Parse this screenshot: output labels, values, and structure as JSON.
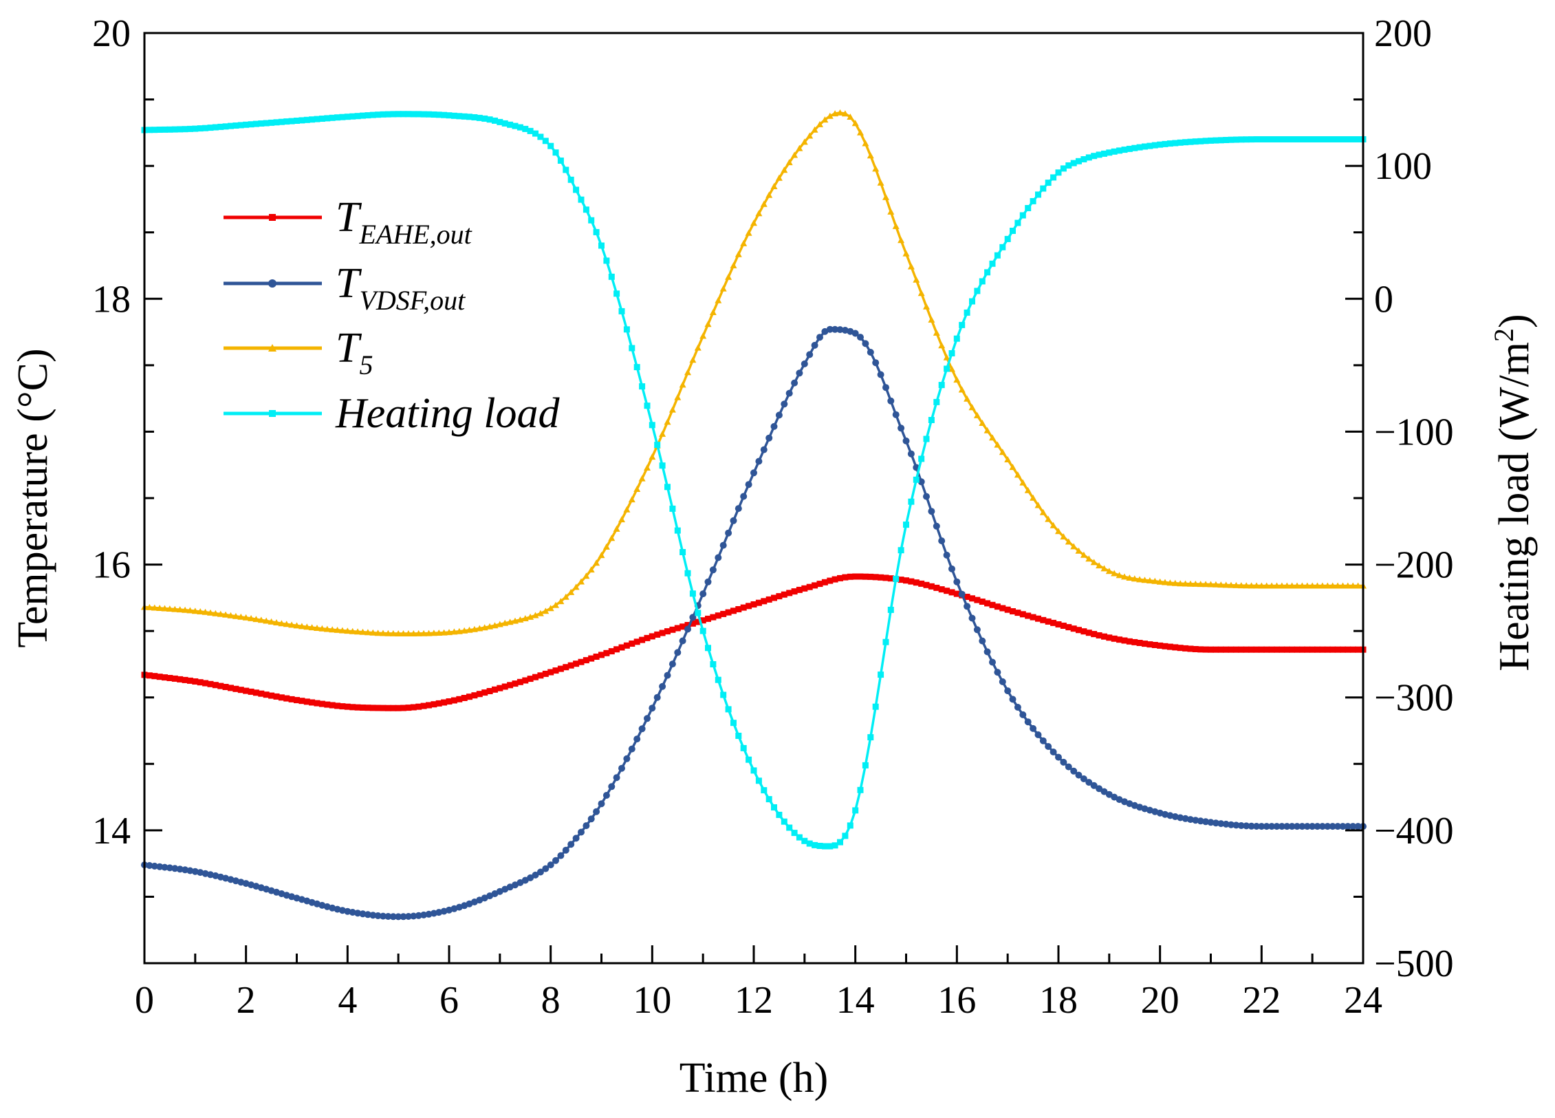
{
  "chart_data": {
    "type": "line",
    "title": "",
    "xlabel": "Time (h)",
    "ylabel": "Temperature (°C)",
    "y2label_main": "Heating load (W/m",
    "y2label_sup": "2",
    "y2label_tail": ")",
    "xlim": [
      0,
      24
    ],
    "ylim": [
      13,
      20
    ],
    "y2lim": [
      -500,
      200
    ],
    "xticks": [
      "0",
      "2",
      "4",
      "6",
      "8",
      "10",
      "12",
      "14",
      "16",
      "18",
      "20",
      "22",
      "24"
    ],
    "yticks": [
      "14",
      "16",
      "18",
      "20"
    ],
    "y2ticks": [
      "−500",
      "−400",
      "−300",
      "−200",
      "−100",
      "0",
      "100",
      "200"
    ],
    "legend_position": "upper-left",
    "series": [
      {
        "name": "T_EAHE,out",
        "label_main": "T",
        "label_sub": "EAHE,out",
        "axis": "left",
        "color": "#f00000",
        "marker": "square",
        "x": [
          0,
          1,
          2,
          3,
          4,
          5,
          6,
          7,
          8,
          9,
          10,
          11,
          12,
          13,
          14,
          15,
          16,
          17,
          18,
          19,
          20,
          21,
          22,
          23,
          24
        ],
        "values": [
          15.17,
          15.12,
          15.05,
          14.98,
          14.93,
          14.92,
          14.97,
          15.07,
          15.19,
          15.32,
          15.46,
          15.58,
          15.7,
          15.82,
          15.91,
          15.88,
          15.78,
          15.66,
          15.55,
          15.45,
          15.39,
          15.36,
          15.36,
          15.36,
          15.36
        ]
      },
      {
        "name": "T_VDSF,out",
        "label_main": "T",
        "label_sub": "VDSF,out",
        "axis": "left",
        "color": "#2f5597",
        "marker": "circle",
        "x": [
          0,
          1,
          2,
          3,
          4,
          5,
          6,
          7,
          8,
          8.5,
          9,
          10,
          11,
          12,
          13,
          13.5,
          14,
          15,
          16,
          17,
          18,
          19,
          20,
          21,
          22,
          23,
          24
        ],
        "values": [
          13.74,
          13.69,
          13.6,
          13.49,
          13.39,
          13.35,
          13.4,
          13.54,
          13.74,
          13.94,
          14.2,
          14.92,
          15.78,
          16.69,
          17.51,
          17.77,
          17.74,
          16.93,
          15.87,
          15.05,
          14.55,
          14.27,
          14.13,
          14.06,
          14.03,
          14.03,
          14.03
        ]
      },
      {
        "name": "T_5",
        "label_main": "T",
        "label_sub": "5",
        "axis": "left",
        "color": "#f4b400",
        "marker": "triangle",
        "x": [
          0,
          1,
          2,
          3,
          4,
          5,
          6,
          7,
          8,
          8.5,
          9,
          10,
          11,
          12,
          13,
          13.7,
          14,
          15,
          16,
          17,
          18,
          19,
          20,
          21,
          22,
          23,
          24
        ],
        "values": [
          15.68,
          15.65,
          15.6,
          15.54,
          15.5,
          15.48,
          15.49,
          15.55,
          15.67,
          15.83,
          16.07,
          16.81,
          17.72,
          18.57,
          19.18,
          19.4,
          19.32,
          18.34,
          17.39,
          16.79,
          16.25,
          15.95,
          15.87,
          15.85,
          15.84,
          15.84,
          15.84
        ]
      },
      {
        "name": "Heating load",
        "label_main": "Heating load",
        "label_sub": "",
        "axis": "right",
        "color": "#00eef5",
        "marker": "square",
        "x": [
          0,
          1,
          2,
          3,
          4,
          5,
          6,
          7,
          8,
          8.5,
          9,
          10,
          11,
          12,
          13,
          13.5,
          14,
          15,
          16,
          17,
          18,
          18.5,
          19,
          20,
          21,
          22,
          23,
          24
        ],
        "values": [
          127,
          128,
          131,
          134,
          137,
          139,
          138,
          133,
          115,
          82,
          40,
          -95,
          -250,
          -355,
          -408,
          -412,
          -385,
          -170,
          -30,
          45,
          95,
          105,
          110,
          116,
          119,
          120,
          120,
          120
        ]
      }
    ]
  }
}
